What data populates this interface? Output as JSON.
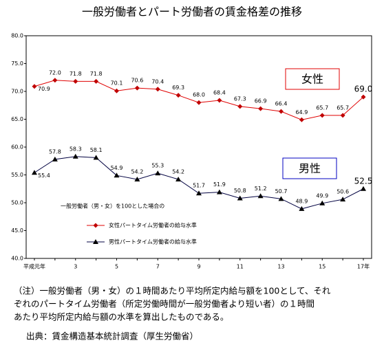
{
  "chart_data": {
    "type": "line",
    "title": "一般労働者とパート労働者の賃金格差の推移",
    "categories": [
      "平成元年",
      null,
      "3",
      null,
      "5",
      null,
      "7",
      null,
      "9",
      null,
      "11",
      null,
      "13",
      null,
      "15",
      null,
      "17年"
    ],
    "series": [
      {
        "name": "女性パートタイム労働者の給与水準",
        "color": "#e00000",
        "marker_color": "#c00000",
        "marker": "diamond",
        "values": [
          70.9,
          72.0,
          71.8,
          71.8,
          70.1,
          70.6,
          70.4,
          69.3,
          68.0,
          68.4,
          67.3,
          66.9,
          66.4,
          64.9,
          65.7,
          65.7,
          69.0
        ],
        "value_labels": [
          "70.9",
          "72.0",
          "71.8",
          "71.8",
          "70.1",
          "70.6",
          "70.4",
          "69.3",
          "68.0",
          "68.4",
          "67.3",
          "66.9",
          "66.4",
          "64.9",
          "65.7",
          "65.7",
          "69.0"
        ]
      },
      {
        "name": "男性パートタイム労働者の給与水準",
        "color": "#000040",
        "marker_color": "#000000",
        "marker": "triangle",
        "values": [
          55.4,
          57.8,
          58.3,
          58.1,
          54.9,
          54.2,
          55.3,
          54.2,
          51.7,
          51.9,
          50.8,
          51.2,
          50.7,
          48.9,
          49.9,
          50.6,
          52.5
        ],
        "value_labels": [
          "55.4",
          "57.8",
          "58.3",
          "58.1",
          "54.9",
          "54.2",
          "55.3",
          "54.2",
          "51.7",
          "51.9",
          "50.8",
          "51.2",
          "50.7",
          "48.9",
          "49.9",
          "50.6",
          "52.5"
        ]
      }
    ],
    "ylim": [
      40,
      80
    ],
    "yticks": [
      {
        "value": 40,
        "label": "40.0"
      },
      {
        "value": 45,
        "label": "45.0"
      },
      {
        "value": 50,
        "label": "50.0"
      },
      {
        "value": 55,
        "label": "55.0"
      },
      {
        "value": 60,
        "label": "60.0"
      },
      {
        "value": 65,
        "label": "65.0"
      },
      {
        "value": 70,
        "label": "70.0"
      },
      {
        "value": 75,
        "label": "75.0"
      },
      {
        "value": 80,
        "label": "80.0"
      }
    ],
    "legend_title": "一般労働者（男・女）を100とした場合の",
    "annotations": [
      "女性",
      "男性"
    ],
    "note": [
      "（注）一般労働者（男・女）の１時間あたり平均所定内給与額を100として、それ",
      "ぞれのパートタイム労働者（所定労働時間が一般労働者より短い者）の１時間",
      "あたり平均所定内給与額の水準を算出したものである。"
    ],
    "source": "出典：賃金構造基本統計調査（厚生労働省）"
  }
}
